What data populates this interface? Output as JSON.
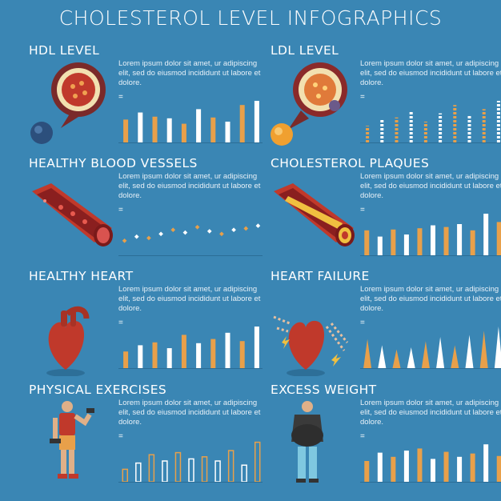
{
  "title": "CHOLESTEROL LEVEL INFOGRAPHICS",
  "lorem": "Lorem ipsum dolor sit amet, ur adipiscing elit, sed do eiusmod incididunt ut labore et dolore.",
  "equals": "=",
  "colors": {
    "background": "#3a86b4",
    "orange": "#e8a04a",
    "white": "#ffffff",
    "red": "#c0392b"
  },
  "sections": [
    {
      "heading": "HDL LEVEL",
      "icon": "hdl-particle-icon",
      "chart": "bar",
      "values": [
        0.55,
        0.72,
        0.62,
        0.58,
        0.45,
        0.8,
        0.6,
        0.5,
        0.9,
        1.0
      ]
    },
    {
      "heading": "LDL LEVEL",
      "icon": "ldl-particle-icon",
      "chart": "dotted-bar",
      "values": [
        0.4,
        0.55,
        0.6,
        0.75,
        0.5,
        0.7,
        0.9,
        0.65,
        0.8,
        1.0
      ]
    },
    {
      "heading": "HEALTHY BLOOD VESSELS",
      "icon": "healthy-vessel-icon",
      "chart": "scatter",
      "values": [
        0.3,
        0.45,
        0.4,
        0.55,
        0.7,
        0.6,
        0.8,
        0.65,
        0.55,
        0.7,
        0.75,
        0.85
      ]
    },
    {
      "heading": "CHOLESTEROL PLAQUES",
      "icon": "plaque-vessel-icon",
      "chart": "bar",
      "values": [
        0.6,
        0.45,
        0.62,
        0.5,
        0.65,
        0.72,
        0.68,
        0.75,
        0.6,
        1.0,
        0.8
      ]
    },
    {
      "heading": "HEALTHY HEART",
      "icon": "healthy-heart-icon",
      "chart": "bar",
      "values": [
        0.4,
        0.55,
        0.62,
        0.48,
        0.8,
        0.6,
        0.7,
        0.85,
        0.65,
        1.0
      ]
    },
    {
      "heading": "HEART FAILURE",
      "icon": "heart-failure-icon",
      "chart": "spike",
      "values": [
        0.7,
        0.55,
        0.45,
        0.5,
        0.65,
        0.75,
        0.55,
        0.8,
        0.9,
        1.0
      ]
    },
    {
      "heading": "PHYSICAL EXERCISES",
      "icon": "exercise-man-icon",
      "chart": "hollow-bar",
      "values": [
        0.3,
        0.45,
        0.65,
        0.5,
        0.7,
        0.55,
        0.6,
        0.5,
        0.75,
        0.4,
        0.95
      ]
    },
    {
      "heading": "EXCESS WEIGHT",
      "icon": "excess-weight-man-icon",
      "chart": "bar",
      "values": [
        0.5,
        0.7,
        0.6,
        0.75,
        0.8,
        0.55,
        0.72,
        0.6,
        0.68,
        0.9,
        0.62
      ]
    }
  ]
}
